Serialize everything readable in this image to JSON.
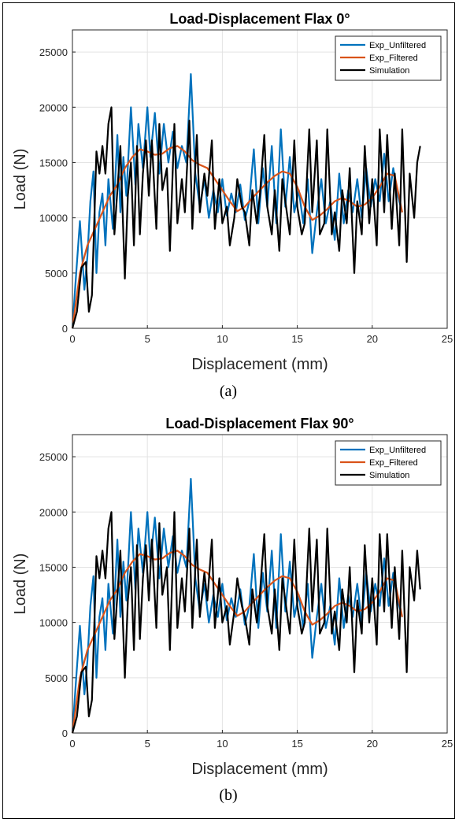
{
  "figure": {
    "captions": [
      "(a)",
      "(b)"
    ]
  },
  "chart_data": [
    {
      "type": "line",
      "title": "Load-Displacement Flax 0°",
      "xlabel": "Displacement (mm)",
      "ylabel": "Load (N)",
      "xlim": [
        0,
        25
      ],
      "ylim": [
        0,
        27000
      ],
      "xticks": [
        0,
        5,
        10,
        15,
        20,
        25
      ],
      "yticks": [
        0,
        5000,
        10000,
        15000,
        20000,
        25000
      ],
      "grid": true,
      "legend": "top-right",
      "series": [
        {
          "name": "Exp_Unfiltered",
          "color": "#0072BD",
          "x": [
            0,
            0.2,
            0.5,
            0.8,
            1.0,
            1.2,
            1.4,
            1.6,
            1.8,
            2.0,
            2.2,
            2.4,
            2.7,
            3.0,
            3.2,
            3.4,
            3.6,
            3.9,
            4.2,
            4.4,
            4.7,
            5.0,
            5.2,
            5.5,
            5.8,
            6.1,
            6.4,
            6.7,
            7.0,
            7.3,
            7.6,
            7.9,
            8.2,
            8.5,
            8.8,
            9.1,
            9.4,
            9.7,
            10.0,
            10.3,
            10.6,
            10.9,
            11.2,
            11.5,
            11.8,
            12.1,
            12.4,
            12.7,
            13.0,
            13.3,
            13.6,
            13.9,
            14.2,
            14.5,
            14.8,
            15.1,
            15.4,
            15.7,
            16.0,
            16.3,
            16.6,
            16.9,
            17.2,
            17.5,
            17.8,
            18.1,
            18.4,
            18.7,
            19.0,
            19.3,
            19.6,
            19.9,
            20.2,
            20.5,
            20.8,
            21.1,
            21.4,
            21.7,
            22.0
          ],
          "y": [
            0,
            4000,
            9700,
            3500,
            6500,
            11500,
            14200,
            5000,
            10500,
            12200,
            7500,
            13500,
            9000,
            17500,
            10500,
            15500,
            12000,
            20000,
            13000,
            18500,
            14500,
            20000,
            15500,
            19500,
            14000,
            18500,
            15000,
            17800,
            14500,
            16500,
            15000,
            23000,
            14000,
            11000,
            13500,
            10000,
            12500,
            10500,
            13500,
            10200,
            12200,
            10500,
            13000,
            9800,
            11500,
            16200,
            9500,
            14500,
            11000,
            16500,
            9500,
            18000,
            11000,
            15500,
            10500,
            12500,
            9500,
            13500,
            6800,
            10500,
            13500,
            9500,
            11500,
            8000,
            14000,
            9500,
            12500,
            10500,
            13500,
            10000,
            14500,
            11000,
            13500,
            11500,
            15800,
            11500,
            14500,
            12000,
            10500
          ]
        },
        {
          "name": "Exp_Filtered",
          "color": "#D95319",
          "x": [
            0,
            0.5,
            1.0,
            1.5,
            2.0,
            2.5,
            3.0,
            3.5,
            4.0,
            4.5,
            5.0,
            5.5,
            6.0,
            6.5,
            7.0,
            7.5,
            8.0,
            8.5,
            9.0,
            9.5,
            10.0,
            10.5,
            11.0,
            11.5,
            12.0,
            12.5,
            13.0,
            13.5,
            14.0,
            14.5,
            15.0,
            15.5,
            16.0,
            16.5,
            17.0,
            17.5,
            18.0,
            18.5,
            19.0,
            19.5,
            20.0,
            20.5,
            21.0,
            21.5,
            22.0
          ],
          "y": [
            0,
            5000,
            7500,
            9000,
            10500,
            12000,
            13000,
            14500,
            15500,
            16200,
            16000,
            15700,
            15800,
            16300,
            16500,
            16000,
            15200,
            14800,
            14500,
            13500,
            12500,
            11500,
            10600,
            11000,
            11800,
            12500,
            13200,
            13800,
            14200,
            14000,
            12800,
            11000,
            9800,
            10200,
            10800,
            11500,
            11800,
            11500,
            11000,
            11200,
            11800,
            12800,
            14000,
            13800,
            10500
          ]
        },
        {
          "name": "Simulation",
          "color": "#000000",
          "x": [
            0,
            0.3,
            0.6,
            0.9,
            1.1,
            1.3,
            1.6,
            1.8,
            2.0,
            2.2,
            2.4,
            2.6,
            2.8,
            3.0,
            3.2,
            3.5,
            3.7,
            3.9,
            4.1,
            4.3,
            4.5,
            4.7,
            4.9,
            5.1,
            5.3,
            5.6,
            5.8,
            6.0,
            6.3,
            6.5,
            6.8,
            7.0,
            7.3,
            7.5,
            7.8,
            8.0,
            8.3,
            8.5,
            8.8,
            9.0,
            9.3,
            9.5,
            9.8,
            10.0,
            10.3,
            10.5,
            10.8,
            11.0,
            11.3,
            11.5,
            11.8,
            12.0,
            12.3,
            12.5,
            12.8,
            13.0,
            13.3,
            13.5,
            13.8,
            14.0,
            14.3,
            14.5,
            14.8,
            15.0,
            15.3,
            15.5,
            15.8,
            16.0,
            16.3,
            16.5,
            16.8,
            17.0,
            17.3,
            17.5,
            17.8,
            18.0,
            18.3,
            18.5,
            18.8,
            19.0,
            19.3,
            19.5,
            19.8,
            20.0,
            20.3,
            20.5,
            20.8,
            21.0,
            21.3,
            21.5,
            21.8,
            22.0,
            22.3,
            22.5,
            22.8,
            23.0,
            23.2
          ],
          "y": [
            0,
            1500,
            5500,
            6000,
            1500,
            3000,
            16000,
            14000,
            16500,
            14000,
            18500,
            20000,
            8500,
            12500,
            16500,
            4500,
            12000,
            15000,
            7500,
            16500,
            8500,
            14000,
            17000,
            12000,
            17000,
            9000,
            18500,
            12500,
            14500,
            7000,
            18500,
            9500,
            13500,
            10500,
            18800,
            9000,
            17500,
            10500,
            14000,
            12000,
            17000,
            9000,
            13500,
            9500,
            11000,
            7500,
            10000,
            13500,
            11000,
            10500,
            7500,
            12500,
            9500,
            12000,
            17500,
            11000,
            8500,
            12500,
            7000,
            13500,
            10500,
            8500,
            17000,
            11000,
            8500,
            9500,
            18000,
            10500,
            17000,
            8500,
            9500,
            18000,
            8500,
            10500,
            7000,
            12500,
            9500,
            14500,
            5000,
            11500,
            8500,
            16500,
            9500,
            13500,
            7500,
            18000,
            10500,
            17500,
            9000,
            14000,
            7500,
            18000,
            6000,
            14000,
            10000,
            15000,
            16500
          ]
        }
      ]
    },
    {
      "type": "line",
      "title": "Load-Displacement Flax 90°",
      "xlabel": "Displacement (mm)",
      "ylabel": "Load (N)",
      "xlim": [
        0,
        25
      ],
      "ylim": [
        0,
        27000
      ],
      "xticks": [
        0,
        5,
        10,
        15,
        20,
        25
      ],
      "yticks": [
        0,
        5000,
        10000,
        15000,
        20000,
        25000
      ],
      "grid": true,
      "legend": "top-right",
      "series": [
        {
          "name": "Exp_Unfiltered",
          "color": "#0072BD",
          "x": [
            0,
            0.2,
            0.5,
            0.8,
            1.0,
            1.2,
            1.4,
            1.6,
            1.8,
            2.0,
            2.2,
            2.4,
            2.7,
            3.0,
            3.2,
            3.4,
            3.6,
            3.9,
            4.2,
            4.4,
            4.7,
            5.0,
            5.2,
            5.5,
            5.8,
            6.1,
            6.4,
            6.7,
            7.0,
            7.3,
            7.6,
            7.9,
            8.2,
            8.5,
            8.8,
            9.1,
            9.4,
            9.7,
            10.0,
            10.3,
            10.6,
            10.9,
            11.2,
            11.5,
            11.8,
            12.1,
            12.4,
            12.7,
            13.0,
            13.3,
            13.6,
            13.9,
            14.2,
            14.5,
            14.8,
            15.1,
            15.4,
            15.7,
            16.0,
            16.3,
            16.6,
            16.9,
            17.2,
            17.5,
            17.8,
            18.1,
            18.4,
            18.7,
            19.0,
            19.3,
            19.6,
            19.9,
            20.2,
            20.5,
            20.8,
            21.1,
            21.4,
            21.7,
            22.0
          ],
          "y": [
            0,
            4000,
            9700,
            3500,
            6500,
            11500,
            14200,
            5000,
            10500,
            12200,
            7500,
            13500,
            9000,
            17500,
            10500,
            15500,
            12000,
            20000,
            13000,
            18500,
            14500,
            20000,
            15500,
            19500,
            14000,
            18500,
            15000,
            17800,
            14500,
            16500,
            15000,
            23000,
            14000,
            11000,
            13500,
            10000,
            12500,
            10500,
            13500,
            10200,
            12200,
            10500,
            13000,
            9800,
            11500,
            16200,
            9500,
            14500,
            11000,
            16500,
            9500,
            18000,
            11000,
            15500,
            10500,
            12500,
            9500,
            13500,
            6800,
            10500,
            13500,
            9500,
            11500,
            8000,
            14000,
            9500,
            12500,
            10500,
            13500,
            10000,
            14500,
            11000,
            13500,
            11500,
            15800,
            11500,
            14500,
            12000,
            10500
          ]
        },
        {
          "name": "Exp_Filtered",
          "color": "#D95319",
          "x": [
            0,
            0.5,
            1.0,
            1.5,
            2.0,
            2.5,
            3.0,
            3.5,
            4.0,
            4.5,
            5.0,
            5.5,
            6.0,
            6.5,
            7.0,
            7.5,
            8.0,
            8.5,
            9.0,
            9.5,
            10.0,
            10.5,
            11.0,
            11.5,
            12.0,
            12.5,
            13.0,
            13.5,
            14.0,
            14.5,
            15.0,
            15.5,
            16.0,
            16.5,
            17.0,
            17.5,
            18.0,
            18.5,
            19.0,
            19.5,
            20.0,
            20.5,
            21.0,
            21.5,
            22.0
          ],
          "y": [
            0,
            5000,
            7500,
            9000,
            10500,
            12000,
            13000,
            14500,
            15500,
            16200,
            16000,
            15700,
            15800,
            16300,
            16500,
            16000,
            15200,
            14800,
            14500,
            13500,
            12500,
            11500,
            10600,
            11000,
            11800,
            12500,
            13200,
            13800,
            14200,
            14000,
            12800,
            11000,
            9800,
            10200,
            10800,
            11500,
            11800,
            11500,
            11000,
            11200,
            11800,
            12800,
            14000,
            13800,
            10500
          ]
        },
        {
          "name": "Simulation",
          "color": "#000000",
          "x": [
            0,
            0.3,
            0.6,
            0.9,
            1.1,
            1.3,
            1.6,
            1.8,
            2.0,
            2.2,
            2.4,
            2.6,
            2.8,
            3.0,
            3.2,
            3.5,
            3.7,
            3.9,
            4.1,
            4.3,
            4.5,
            4.7,
            4.9,
            5.1,
            5.3,
            5.6,
            5.8,
            6.0,
            6.3,
            6.5,
            6.8,
            7.0,
            7.3,
            7.5,
            7.8,
            8.0,
            8.3,
            8.5,
            8.8,
            9.0,
            9.3,
            9.5,
            9.8,
            10.0,
            10.3,
            10.5,
            10.8,
            11.0,
            11.3,
            11.5,
            11.8,
            12.0,
            12.3,
            12.5,
            12.8,
            13.0,
            13.3,
            13.5,
            13.8,
            14.0,
            14.3,
            14.5,
            14.8,
            15.0,
            15.3,
            15.5,
            15.8,
            16.0,
            16.3,
            16.5,
            16.8,
            17.0,
            17.3,
            17.5,
            17.8,
            18.0,
            18.3,
            18.5,
            18.8,
            19.0,
            19.3,
            19.5,
            19.8,
            20.0,
            20.3,
            20.5,
            20.8,
            21.0,
            21.3,
            21.5,
            21.8,
            22.0,
            22.3,
            22.5,
            22.8,
            23.0,
            23.2
          ],
          "y": [
            0,
            1500,
            5500,
            6000,
            1500,
            3000,
            16000,
            14000,
            16500,
            14000,
            18500,
            20000,
            8500,
            12500,
            16500,
            5000,
            12000,
            15000,
            7500,
            17000,
            8500,
            14000,
            17000,
            12000,
            17500,
            9500,
            19000,
            12500,
            15000,
            7500,
            20000,
            9500,
            14000,
            11000,
            18500,
            9500,
            17500,
            10500,
            14500,
            12000,
            17500,
            9500,
            14000,
            10000,
            11500,
            8000,
            11000,
            14000,
            11500,
            10500,
            8000,
            13000,
            10000,
            12500,
            18000,
            11500,
            9000,
            13000,
            7500,
            14000,
            11000,
            9000,
            17500,
            11500,
            9000,
            10000,
            18500,
            11000,
            17500,
            9000,
            10000,
            18500,
            9000,
            11000,
            7500,
            13000,
            10000,
            15000,
            5500,
            12000,
            9000,
            17000,
            10000,
            14000,
            8000,
            18000,
            11000,
            18000,
            9500,
            15000,
            8500,
            16500,
            5500,
            15000,
            12000,
            16500,
            13000
          ]
        }
      ]
    }
  ]
}
